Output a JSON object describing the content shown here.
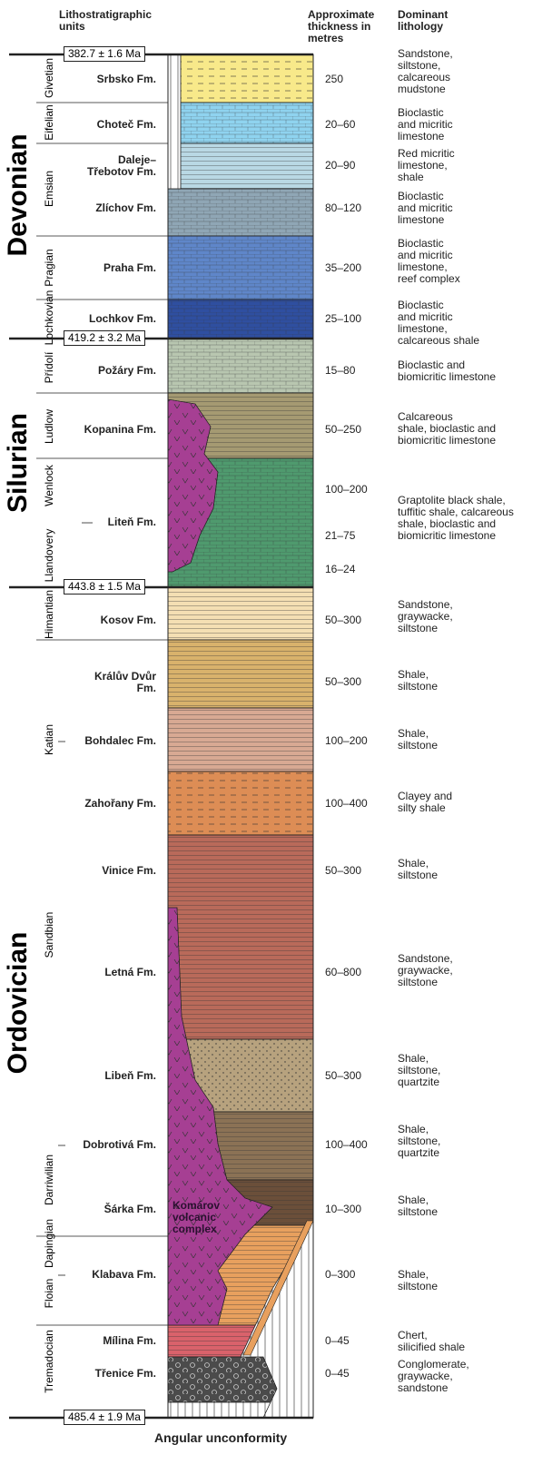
{
  "headers": {
    "units": "Lithostratigraphic units",
    "thickness": "Approximate thickness in metres",
    "lithology": "Dominant lithology"
  },
  "periods": [
    "Devonian",
    "Silurian",
    "Ordovician"
  ],
  "stages": [
    "Givetian",
    "Eifelian",
    "Emsian",
    "Pragian",
    "Lochkovian",
    "Přídolí",
    "Ludlow",
    "Wenlock",
    "Llandovery",
    "Himantian",
    "Katian",
    "Sandbian",
    "Darriwilian",
    "Dapingian",
    "Floian",
    "Tremadocian"
  ],
  "boundaries": [
    "382.7 ± 1.6 Ma",
    "419.2 ± 3.2 Ma",
    "443.8 ± 1.5 Ma",
    "485.4 ± 1.9 Ma"
  ],
  "formations": [
    {
      "name": "Srbsko Fm.",
      "thickness": "250",
      "lithology": [
        "Sandstone,",
        "siltstone,",
        "calcareous",
        "mudstone"
      ]
    },
    {
      "name": "Choteč Fm.",
      "thickness": "20–60",
      "lithology": [
        "Bioclastic",
        "and micritic",
        "limestone"
      ]
    },
    {
      "name": "Daleje–Třebotov Fm.",
      "thickness": "20–90",
      "lithology": [
        "Red micritic",
        "limestone,",
        "shale"
      ]
    },
    {
      "name": "Zlíchov Fm.",
      "thickness": "80–120",
      "lithology": [
        "Bioclastic",
        "and micritic",
        "limestone"
      ]
    },
    {
      "name": "Praha Fm.",
      "thickness": "35–200",
      "lithology": [
        "Bioclastic",
        "and micritic",
        "limestone,",
        "reef complex"
      ]
    },
    {
      "name": "Lochkov Fm.",
      "thickness": "25–100",
      "lithology": [
        "Bioclastic",
        "and micritic",
        "limestone,",
        "calcareous shale"
      ]
    },
    {
      "name": "Požáry Fm.",
      "thickness": "15–80",
      "lithology": [
        "Bioclastic and",
        "biomicritic limestone"
      ]
    },
    {
      "name": "Kopanina Fm.",
      "thickness": "50–250",
      "lithology": [
        "Calcareous",
        "shale, bioclastic and",
        "biomicritic limestone"
      ]
    },
    {
      "name": "Liteň Fm.",
      "thickness": [
        "100–200",
        "21–75",
        "16–24"
      ],
      "lithology": [
        "Graptolite black shale,",
        "tuffitic shale, calcareous",
        "shale, bioclastic and",
        "biomicritic limestone"
      ]
    },
    {
      "name": "Kosov Fm.",
      "thickness": "50–300",
      "lithology": [
        "Sandstone,",
        "graywacke,",
        "siltstone"
      ]
    },
    {
      "name": "Králův Dvůr Fm.",
      "thickness": "50–300",
      "lithology": [
        "Shale,",
        "siltstone"
      ]
    },
    {
      "name": "Bohdalec Fm.",
      "thickness": "100–200",
      "lithology": [
        "Shale,",
        "siltstone"
      ]
    },
    {
      "name": "Zahořany Fm.",
      "thickness": "100–400",
      "lithology": [
        "Clayey and",
        "silty shale"
      ]
    },
    {
      "name": "Vinice Fm.",
      "thickness": "50–300",
      "lithology": [
        "Shale,",
        "siltstone"
      ]
    },
    {
      "name": "Letná Fm.",
      "thickness": "60–800",
      "lithology": [
        "Sandstone,",
        "graywacke,",
        "siltstone"
      ]
    },
    {
      "name": "Libeň Fm.",
      "thickness": "50–300",
      "lithology": [
        "Shale,",
        "siltstone,",
        "quartzite"
      ]
    },
    {
      "name": "Dobrotivá Fm.",
      "thickness": "100–400",
      "lithology": [
        "Shale,",
        "siltstone,",
        "quartzite"
      ]
    },
    {
      "name": "Šárka Fm.",
      "thickness": "10–300",
      "lithology": [
        "Shale,",
        "siltstone"
      ]
    },
    {
      "name": "Klabava Fm.",
      "thickness": "0–300",
      "lithology": [
        "Shale,",
        "siltstone"
      ]
    },
    {
      "name": "Mílina Fm.",
      "thickness": "0–45",
      "lithology": [
        "Chert,",
        "silicified shale"
      ]
    },
    {
      "name": "Třenice Fm.",
      "thickness": "0–45",
      "lithology": [
        "Conglomerate,",
        "graywacke,",
        "sandstone"
      ]
    }
  ],
  "volcanic_label": "Komárov volcanic complex",
  "footer": "Angular unconformity"
}
